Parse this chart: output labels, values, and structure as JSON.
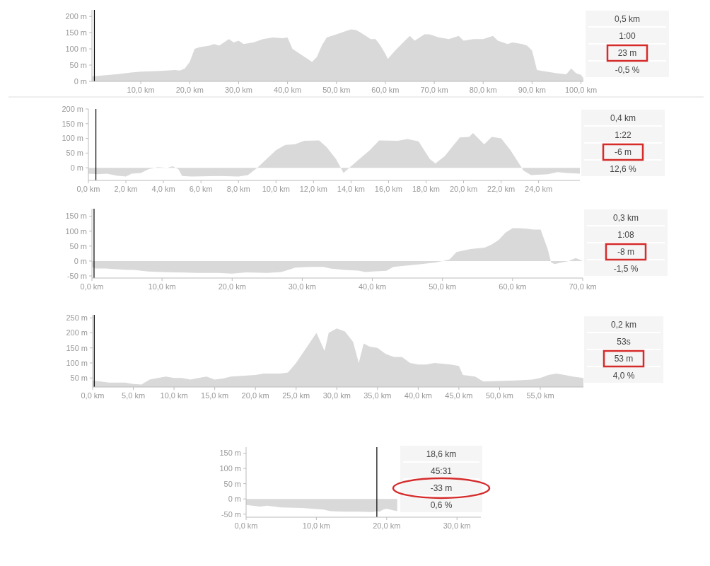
{
  "chart_data": [
    {
      "type": "area",
      "xlim": [
        0,
        100.5
      ],
      "ylim": [
        0,
        220
      ],
      "xticks": [
        {
          "value": 10,
          "label": "10,0 km"
        },
        {
          "value": 20,
          "label": "20,0 km"
        },
        {
          "value": 30,
          "label": "30,0 km"
        },
        {
          "value": 40,
          "label": "40,0 km"
        },
        {
          "value": 50,
          "label": "50,0 km"
        },
        {
          "value": 60,
          "label": "60,0 km"
        },
        {
          "value": 70,
          "label": "70,0 km"
        },
        {
          "value": 80,
          "label": "80,0 km"
        },
        {
          "value": 90,
          "label": "90,0 km"
        },
        {
          "value": 100,
          "label": "100,0 km"
        }
      ],
      "yticks": [
        {
          "value": 0,
          "label": "0 m"
        },
        {
          "value": 50,
          "label": "50 m"
        },
        {
          "value": 100,
          "label": "100 m"
        },
        {
          "value": 150,
          "label": "150 m"
        },
        {
          "value": 200,
          "label": "200 m"
        }
      ],
      "ref_lines": [
        {
          "axis": "x",
          "value": 0.5,
          "color": "#000000"
        }
      ],
      "annotations": [
        "0,5 km",
        "1:00",
        "23 m",
        "-0,5 %"
      ],
      "series": [
        {
          "color": "#d9d9d9",
          "x": [
            0,
            2,
            5,
            8,
            10,
            14,
            17,
            18,
            19,
            20,
            21,
            22,
            24,
            25,
            26,
            27,
            28,
            29,
            30,
            31,
            33,
            35,
            37,
            39,
            40,
            41,
            43,
            44,
            45,
            46,
            47,
            48,
            50,
            52,
            53,
            54,
            55,
            56,
            57,
            58,
            59,
            60,
            60.5,
            62,
            64,
            65,
            66,
            68,
            69,
            71,
            73,
            75,
            76,
            78,
            80,
            82,
            83,
            85,
            86,
            88,
            89,
            90,
            91,
            93,
            95,
            97,
            98,
            99,
            100,
            100.5
          ],
          "values": [
            15,
            18,
            22,
            27,
            30,
            32,
            35,
            33,
            40,
            60,
            100,
            105,
            110,
            115,
            110,
            120,
            130,
            120,
            125,
            115,
            120,
            130,
            135,
            133,
            135,
            100,
            80,
            70,
            60,
            75,
            110,
            135,
            145,
            155,
            160,
            158,
            150,
            140,
            130,
            130,
            110,
            85,
            69,
            95,
            125,
            140,
            125,
            145,
            145,
            135,
            130,
            140,
            125,
            130,
            130,
            140,
            125,
            115,
            120,
            115,
            110,
            95,
            35,
            30,
            25,
            22,
            40,
            25,
            20,
            10
          ]
        }
      ]
    },
    {
      "type": "area",
      "xlim": [
        0,
        26.2
      ],
      "ylim": [
        -43,
        200
      ],
      "xticks": [
        {
          "value": 0,
          "label": "0,0 km"
        },
        {
          "value": 2,
          "label": "2,0 km"
        },
        {
          "value": 4,
          "label": "4,0 km"
        },
        {
          "value": 6,
          "label": "6,0 km"
        },
        {
          "value": 8,
          "label": "8,0 km"
        },
        {
          "value": 10,
          "label": "10,0 km"
        },
        {
          "value": 12,
          "label": "12,0 km"
        },
        {
          "value": 14,
          "label": "14,0 km"
        },
        {
          "value": 16,
          "label": "16,0 km"
        },
        {
          "value": 18,
          "label": "18,0 km"
        },
        {
          "value": 20,
          "label": "20,0 km"
        },
        {
          "value": 22,
          "label": "22,0 km"
        },
        {
          "value": 24,
          "label": "24,0 km"
        }
      ],
      "yticks": [
        {
          "value": 0,
          "label": "0 m"
        },
        {
          "value": 50,
          "label": "50 m"
        },
        {
          "value": 100,
          "label": "100 m"
        },
        {
          "value": 150,
          "label": "150 m"
        },
        {
          "value": 200,
          "label": "200 m"
        }
      ],
      "ref_lines": [
        {
          "axis": "x",
          "value": 0.4,
          "color": "#000000"
        }
      ],
      "annotations": [
        "0,4 km",
        "1:22",
        "-6 m",
        "12,6 %"
      ],
      "series": [
        {
          "color": "#d9d9d9",
          "x": [
            0,
            0.5,
            1,
            1.5,
            2,
            2.3,
            2.8,
            3.2,
            3.7,
            4.2,
            4.5,
            4.8,
            5,
            5.5,
            7,
            8,
            8.5,
            9,
            9.5,
            10,
            10.5,
            11,
            11.5,
            12.3,
            12.7,
            13.2,
            13.6,
            14,
            15,
            15.5,
            16.5,
            17,
            17.6,
            18.2,
            18.5,
            19,
            19.8,
            20.3,
            20.5,
            21.1,
            21.5,
            22,
            22.5,
            23.2,
            23.6,
            24.5,
            25,
            25.5,
            26.2
          ],
          "values": [
            -20,
            -22,
            -20,
            -27,
            -30,
            -20,
            -18,
            -5,
            2,
            0,
            5,
            -5,
            -28,
            -30,
            -28,
            -30,
            -25,
            0,
            30,
            60,
            78,
            80,
            92,
            93,
            70,
            30,
            -18,
            5,
            60,
            93,
            92,
            98,
            90,
            30,
            15,
            40,
            103,
            105,
            118,
            80,
            105,
            100,
            60,
            -10,
            -25,
            -22,
            -15,
            -18,
            -20
          ]
        }
      ]
    },
    {
      "type": "area",
      "xlim": [
        0,
        70
      ],
      "ylim": [
        -57,
        175
      ],
      "xticks": [
        {
          "value": 0,
          "label": "0,0 km"
        },
        {
          "value": 10,
          "label": "10,0 km"
        },
        {
          "value": 20,
          "label": "20,0 km"
        },
        {
          "value": 30,
          "label": "30,0 km"
        },
        {
          "value": 40,
          "label": "40,0 km"
        },
        {
          "value": 50,
          "label": "50,0 km"
        },
        {
          "value": 60,
          "label": "60,0 km"
        },
        {
          "value": 70,
          "label": "70,0 km"
        }
      ],
      "yticks": [
        {
          "value": -50,
          "label": "-50 m"
        },
        {
          "value": 0,
          "label": "0 m"
        },
        {
          "value": 50,
          "label": "50 m"
        },
        {
          "value": 100,
          "label": "100 m"
        },
        {
          "value": 150,
          "label": "150 m"
        }
      ],
      "ref_lines": [
        {
          "axis": "x",
          "value": 0.3,
          "color": "#000000"
        }
      ],
      "annotations": [
        "0,3 km",
        "1:08",
        "-8 m",
        "-1,5 %"
      ],
      "series": [
        {
          "color": "#d9d9d9",
          "x": [
            0,
            0.5,
            2,
            5,
            6,
            8,
            10,
            12,
            15,
            18,
            20,
            22,
            25,
            27,
            28,
            29,
            31,
            33,
            34,
            36,
            38,
            39,
            40,
            42,
            43,
            45,
            47,
            49,
            50,
            51,
            52,
            54,
            56,
            57,
            58,
            59,
            60,
            61,
            62,
            63,
            64,
            65,
            65.5,
            66,
            67,
            68,
            69,
            69.5,
            70
          ],
          "values": [
            -20,
            -25,
            -25,
            -30,
            -30,
            -35,
            -37,
            -38,
            -40,
            -40,
            -42,
            -38,
            -40,
            -37,
            -30,
            -22,
            -20,
            -20,
            -25,
            -30,
            -32,
            -37,
            -35,
            -33,
            -20,
            -15,
            -10,
            -5,
            0,
            5,
            30,
            40,
            45,
            55,
            70,
            95,
            110,
            110,
            108,
            105,
            105,
            40,
            -5,
            -10,
            -5,
            0,
            10,
            5,
            0
          ]
        }
      ]
    },
    {
      "type": "area",
      "xlim": [
        0,
        60.3
      ],
      "ylim": [
        20,
        260
      ],
      "xticks": [
        {
          "value": 0,
          "label": "0,0 km"
        },
        {
          "value": 5,
          "label": "5,0 km"
        },
        {
          "value": 10,
          "label": "10,0 km"
        },
        {
          "value": 15,
          "label": "15,0 km"
        },
        {
          "value": 20,
          "label": "20,0 km"
        },
        {
          "value": 25,
          "label": "25,0 km"
        },
        {
          "value": 30,
          "label": "30,0 km"
        },
        {
          "value": 35,
          "label": "35,0 km"
        },
        {
          "value": 40,
          "label": "40,0 km"
        },
        {
          "value": 45,
          "label": "45,0 km"
        },
        {
          "value": 50,
          "label": "50,0 km"
        },
        {
          "value": 55,
          "label": "55,0 km"
        }
      ],
      "yticks": [
        {
          "value": 50,
          "label": "50 m"
        },
        {
          "value": 100,
          "label": "100 m"
        },
        {
          "value": 150,
          "label": "150 m"
        },
        {
          "value": 200,
          "label": "200 m"
        },
        {
          "value": 250,
          "label": "250 m"
        }
      ],
      "ref_lines": [
        {
          "axis": "x",
          "value": 0.2,
          "color": "#000000"
        }
      ],
      "annotations": [
        "0,2 km",
        "53s",
        "53 m",
        "4,0 %"
      ],
      "series": [
        {
          "color": "#d9d9d9",
          "x": [
            0,
            1,
            2,
            4,
            5,
            6,
            7,
            8,
            9,
            10,
            11,
            12,
            13,
            14,
            15,
            16,
            17,
            19,
            20,
            21,
            23,
            24,
            25,
            26,
            27,
            27.5,
            28,
            28.5,
            29,
            30,
            31,
            32,
            32.7,
            33.3,
            34,
            35,
            36,
            37,
            38,
            39,
            40,
            41,
            42,
            44,
            45,
            45.5,
            47,
            48,
            50,
            52,
            54,
            55,
            56,
            57,
            58,
            59,
            60.3
          ],
          "values": [
            42,
            38,
            35,
            35,
            30,
            28,
            45,
            50,
            55,
            50,
            50,
            45,
            50,
            55,
            45,
            48,
            55,
            58,
            60,
            65,
            65,
            68,
            100,
            140,
            180,
            200,
            170,
            140,
            200,
            215,
            205,
            170,
            100,
            165,
            155,
            150,
            130,
            120,
            120,
            100,
            95,
            95,
            100,
            95,
            90,
            60,
            55,
            38,
            40,
            42,
            45,
            50,
            60,
            65,
            60,
            55,
            50
          ]
        }
      ]
    },
    {
      "type": "area",
      "xlim": [
        0,
        33.4
      ],
      "ylim": [
        -60,
        170
      ],
      "xticks": [
        {
          "value": 0,
          "label": "0,0 km"
        },
        {
          "value": 10,
          "label": "10,0 km"
        },
        {
          "value": 20,
          "label": "20,0 km"
        },
        {
          "value": 30,
          "label": "30,0 km"
        }
      ],
      "yticks": [
        {
          "value": -50,
          "label": "-50 m"
        },
        {
          "value": 0,
          "label": "0 m"
        },
        {
          "value": 50,
          "label": "50 m"
        },
        {
          "value": 100,
          "label": "100 m"
        },
        {
          "value": 150,
          "label": "150 m"
        }
      ],
      "ref_lines": [
        {
          "axis": "x",
          "value": 18.6,
          "color": "#000000"
        }
      ],
      "annotations": [
        "18,6 km",
        "45:31",
        "-33 m",
        "0,6 %"
      ],
      "series": [
        {
          "color": "#d9d9d9",
          "x": [
            0,
            2,
            3,
            5,
            8,
            10,
            11,
            12,
            14,
            16,
            18,
            18.6,
            19,
            19.5,
            20,
            20.5,
            21,
            21.5
          ],
          "values": [
            -20,
            -25,
            -22,
            -28,
            -30,
            -33,
            -35,
            -40,
            -42,
            -42,
            -43,
            -40,
            -42,
            -35,
            -32,
            -35,
            -38,
            -40
          ]
        }
      ]
    }
  ]
}
